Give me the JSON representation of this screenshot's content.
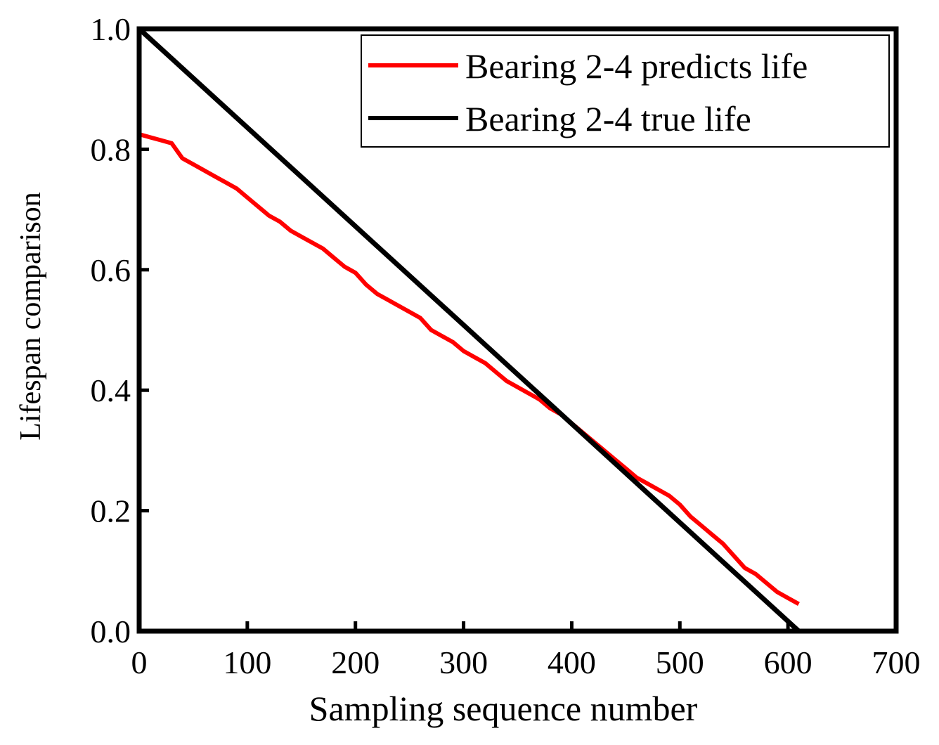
{
  "chart_data": {
    "type": "line",
    "title": "",
    "xlabel": "Sampling sequence number",
    "ylabel": "Lifespan comparison",
    "xlim": [
      0,
      700
    ],
    "ylim": [
      0.0,
      1.0
    ],
    "x_ticks": [
      0,
      100,
      200,
      300,
      400,
      500,
      600,
      700
    ],
    "x_tick_labels": [
      "0",
      "100",
      "200",
      "300",
      "400",
      "500",
      "600",
      "700"
    ],
    "y_ticks": [
      0.0,
      0.2,
      0.4,
      0.6,
      0.8,
      1.0
    ],
    "y_tick_labels": [
      "0.0",
      "0.2",
      "0.4",
      "0.6",
      "0.8",
      "1.0"
    ],
    "grid": false,
    "legend_position": "top-right",
    "series": [
      {
        "name": "Bearing 2-4 predicts life",
        "color": "#ff0000",
        "x": [
          0,
          10,
          20,
          30,
          40,
          50,
          60,
          70,
          80,
          90,
          100,
          110,
          120,
          130,
          140,
          150,
          160,
          170,
          180,
          190,
          200,
          210,
          220,
          230,
          240,
          250,
          260,
          270,
          280,
          290,
          300,
          310,
          320,
          330,
          340,
          350,
          360,
          370,
          380,
          390,
          400,
          410,
          420,
          430,
          440,
          450,
          460,
          470,
          480,
          490,
          500,
          510,
          520,
          530,
          540,
          550,
          560,
          570,
          580,
          590,
          600,
          610
        ],
        "y": [
          0.825,
          0.82,
          0.815,
          0.81,
          0.785,
          0.775,
          0.765,
          0.755,
          0.745,
          0.735,
          0.72,
          0.705,
          0.69,
          0.68,
          0.665,
          0.655,
          0.645,
          0.635,
          0.62,
          0.605,
          0.595,
          0.575,
          0.56,
          0.55,
          0.54,
          0.53,
          0.52,
          0.5,
          0.49,
          0.48,
          0.465,
          0.455,
          0.445,
          0.43,
          0.415,
          0.405,
          0.395,
          0.385,
          0.37,
          0.36,
          0.345,
          0.33,
          0.315,
          0.3,
          0.285,
          0.27,
          0.255,
          0.245,
          0.235,
          0.225,
          0.21,
          0.19,
          0.175,
          0.16,
          0.145,
          0.125,
          0.105,
          0.095,
          0.08,
          0.065,
          0.055,
          0.045
        ]
      },
      {
        "name": "Bearing 2-4 true life",
        "color": "#000000",
        "x": [
          0,
          610
        ],
        "y": [
          1.0,
          0.0
        ]
      }
    ]
  }
}
